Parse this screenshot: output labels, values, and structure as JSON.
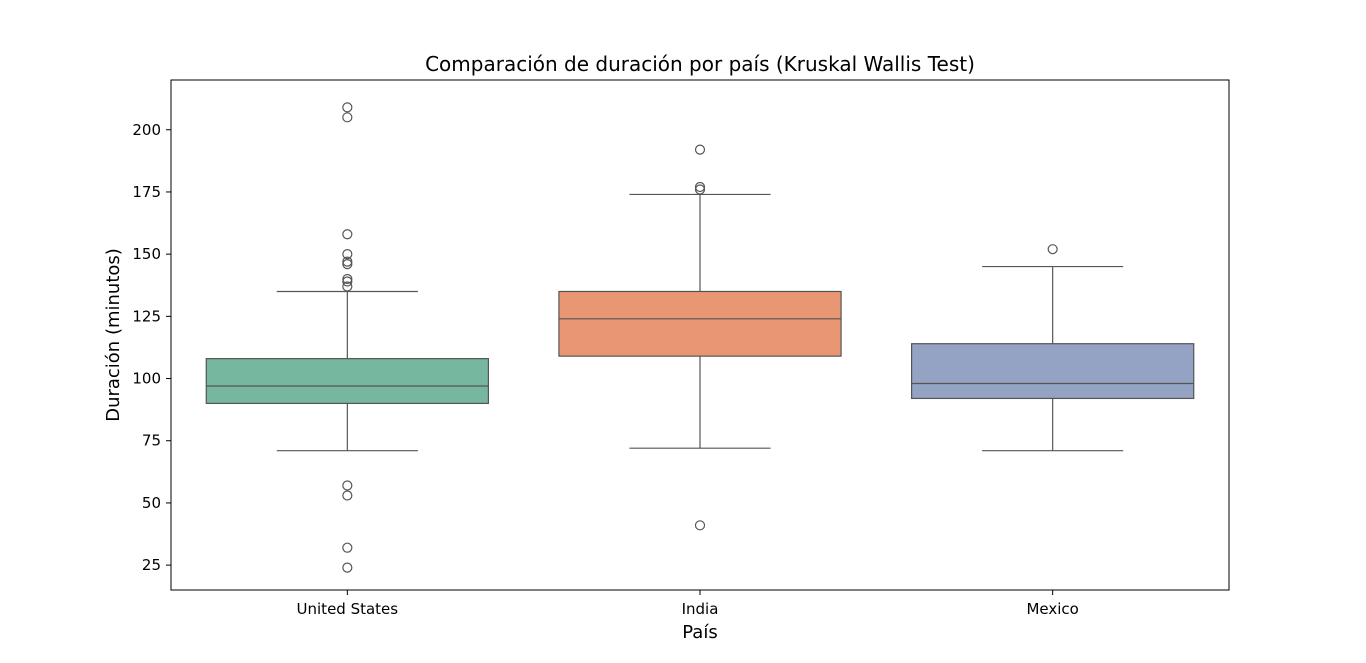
{
  "chart_data": {
    "type": "box",
    "title": "Comparación de duración por país (Kruskal Wallis Test)",
    "xlabel": "País",
    "ylabel": "Duración (minutos)",
    "ylim": [
      15,
      220
    ],
    "yticks": [
      25,
      50,
      75,
      100,
      125,
      150,
      175,
      200
    ],
    "grid": false,
    "categories": [
      "United States",
      "India",
      "Mexico"
    ],
    "boxes": [
      {
        "category": "United States",
        "color": "#76b7a0",
        "whisker_low": 71,
        "q1": 90,
        "median": 97,
        "q3": 108,
        "whisker_high": 135,
        "outliers": [
          209,
          205,
          158,
          150,
          147,
          146,
          140,
          139,
          137,
          57,
          53,
          32,
          24
        ]
      },
      {
        "category": "India",
        "color": "#e99673",
        "whisker_low": 72,
        "q1": 109,
        "median": 124,
        "q3": 135,
        "whisker_high": 174,
        "outliers": [
          192,
          177,
          176,
          41
        ]
      },
      {
        "category": "Mexico",
        "color": "#94a3c3",
        "whisker_low": 71,
        "q1": 92,
        "median": 98,
        "q3": 114,
        "whisker_high": 145,
        "outliers": [
          152
        ]
      }
    ]
  }
}
